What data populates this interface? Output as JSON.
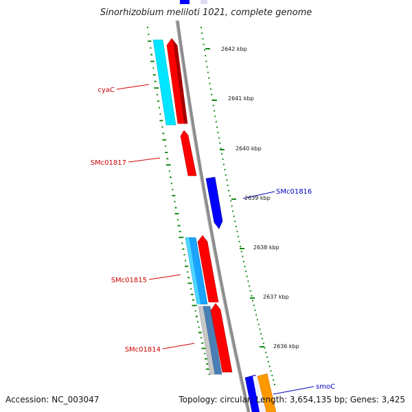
{
  "title": "Sinorhizobium meliloti 1021, complete genome",
  "footer": {
    "accession": "Accession: NC_003047",
    "summary": "Topology: circular; Length: 3,654,135 bp; Genes: 3,425"
  },
  "ticks": [
    "2642 kbp",
    "2641 kbp",
    "2640 kbp",
    "2639 kbp",
    "2638 kbp",
    "2637 kbp",
    "2636 kbp"
  ],
  "gene_labels": {
    "left": [
      "cyaC",
      "SMc01817",
      "SMc01815",
      "SMc01814"
    ],
    "right": [
      "SMc01816",
      "smoC"
    ]
  },
  "colors": {
    "forward_cds": "#ff0000",
    "reverse_cds": "#0000ff",
    "cyan_feature": "#00e5ff",
    "sky_feature": "#1aa3ff",
    "steel_feature": "#4a7fb5",
    "gray_feature": "#c8c8c8",
    "orange_feature": "#ff9900",
    "backbone": "#8c8c8c",
    "gc_dots": "#118a11",
    "left_label": "#cc0000",
    "right_label": "#0000bb"
  }
}
